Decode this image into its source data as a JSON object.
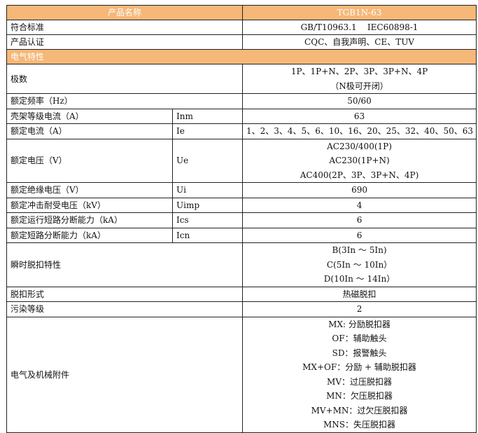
{
  "header": {
    "label": "产品名称",
    "value": "TGB1N-63"
  },
  "section_title": "电气特性",
  "colors": {
    "header_bg": "#F5B878",
    "header_text": "#FFFFFF",
    "border": "#222222"
  },
  "top_rows": [
    {
      "label": "符合标准",
      "value": "GB/T10963.1    IEC60898-1"
    },
    {
      "label": "产品认证",
      "value": "CQC、自我声明、CE、TUV"
    }
  ],
  "rows": [
    {
      "label": "极数",
      "symbol": "",
      "values": [
        "1P、1P+N、2P、3P、3P+N、4P",
        "（N极可开闭）"
      ]
    },
    {
      "label": "额定频率（Hz）",
      "symbol": "",
      "values": [
        "50/60"
      ]
    },
    {
      "label": "壳架等级电流（A）",
      "symbol": "Inm",
      "values": [
        "63"
      ]
    },
    {
      "label": "额定电流（A）",
      "symbol": "Ie",
      "values": [
        "1、2、3、4、5、6、10、16、20、25、32、40、50、63"
      ]
    },
    {
      "label": "额定电压（V）",
      "symbol": "Ue",
      "values": [
        "AC230/400(1P)",
        "AC230(1P+N)",
        "AC400(2P、3P、3P+N、4P)"
      ]
    },
    {
      "label": "额定绝缘电压（V）",
      "symbol": "Ui",
      "values": [
        "690"
      ]
    },
    {
      "label": "额定冲击耐受电压（kV）",
      "symbol": "Uimp",
      "values": [
        "4"
      ]
    },
    {
      "label": "额定运行短路分断能力（kA）",
      "symbol": "Ics",
      "values": [
        "6"
      ]
    },
    {
      "label": "额定短路分断能力（kA）",
      "symbol": "Icn",
      "values": [
        "6"
      ]
    },
    {
      "label": "瞬时脱扣特性",
      "symbol": "",
      "values": [
        "B(3In ～ 5In)",
        "C(5In ～ 10In）",
        "D(10In ～ 14In）"
      ]
    },
    {
      "label": "脱扣形式",
      "symbol": "",
      "values": [
        "热磁脱扣"
      ]
    },
    {
      "label": "污染等级",
      "symbol": "",
      "values": [
        "2"
      ]
    },
    {
      "label": "电气及机械附件",
      "symbol": "",
      "values": [
        "MX: 分励脱扣器",
        "OF：辅助触头",
        "SD：报警触头",
        "MX+OF：分励 + 辅助脱扣器",
        "MV：过压脱扣器",
        "MN：欠压脱扣器",
        "MV+MN：过欠压脱扣器",
        "MNS：失压脱扣器"
      ]
    }
  ]
}
